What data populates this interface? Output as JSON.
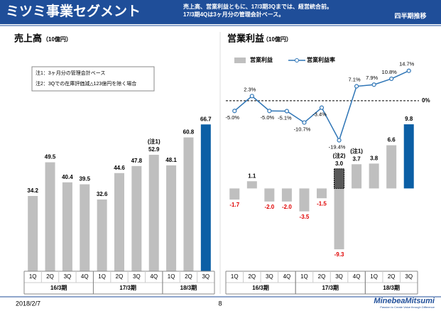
{
  "header": {
    "title": "ミツミ事業セグメント",
    "notes": [
      "売上高、営業利益ともに、17/3期3Qまでは、経営統合前。",
      "17/3期4Qは3ヶ月分の管理会計ベース。"
    ],
    "badge": "四半期推移"
  },
  "footer": {
    "date": "2018/2/7",
    "page": "8",
    "logo": "MinebeaMitsumi",
    "tagline": "Passion to Create Value through Difference"
  },
  "chart_data": [
    {
      "type": "bar",
      "title": "売上高",
      "unit": "（10億円）",
      "notes": [
        "注1：3ヶ月分の管理会計ベース",
        "注2：3Qでの在庫評価減△123億円を除く場合"
      ],
      "categories": [
        "1Q",
        "2Q",
        "3Q",
        "4Q",
        "1Q",
        "2Q",
        "3Q",
        "4Q",
        "1Q",
        "2Q",
        "3Q"
      ],
      "groups": [
        "16/3期",
        "17/3期",
        "18/3期"
      ],
      "values": [
        34.2,
        49.5,
        40.4,
        39.5,
        32.6,
        44.6,
        47.8,
        52.9,
        48.1,
        60.8,
        66.7
      ],
      "colors": [
        "#bfbfbf",
        "#bfbfbf",
        "#bfbfbf",
        "#bfbfbf",
        "#bfbfbf",
        "#bfbfbf",
        "#bfbfbf",
        "#bfbfbf",
        "#bfbfbf",
        "#bfbfbf",
        "#0b5fa5"
      ],
      "annotations": [
        null,
        null,
        null,
        null,
        null,
        null,
        null,
        "(注1)",
        null,
        null,
        null
      ],
      "ylim": [
        0,
        70
      ]
    },
    {
      "type": "bar-line",
      "title": "営業利益",
      "unit": "（10億円）",
      "categories": [
        "1Q",
        "2Q",
        "3Q",
        "4Q",
        "1Q",
        "2Q",
        "3Q",
        "4Q",
        "1Q",
        "2Q",
        "3Q"
      ],
      "groups": [
        "16/3期",
        "17/3期",
        "18/3期"
      ],
      "ylim": [
        -12,
        11
      ],
      "y2lim": [
        -22,
        16
      ],
      "y2ticks": [
        {
          "value": 0,
          "label": "0%"
        }
      ],
      "series": [
        {
          "name": "営業利益",
          "kind": "bar",
          "values": [
            -1.7,
            1.1,
            -2.0,
            -2.0,
            -3.5,
            -1.5,
            -9.3,
            3.7,
            3.8,
            6.6,
            9.8
          ],
          "value_labels": [
            "-1.7",
            "1.1",
            "-2.0",
            "-2.0",
            "-3.5",
            "-1.5",
            "-9.3",
            "3.7",
            "3.8",
            "6.6",
            "9.8"
          ],
          "colors": [
            "#bfbfbf",
            "#bfbfbf",
            "#bfbfbf",
            "#bfbfbf",
            "#bfbfbf",
            "#bfbfbf",
            "#bfbfbf",
            "#bfbfbf",
            "#bfbfbf",
            "#bfbfbf",
            "#0b5fa5"
          ],
          "annotations": [
            null,
            null,
            null,
            null,
            null,
            null,
            null,
            "(注1)",
            null,
            null,
            null
          ]
        },
        {
          "kind": "bar",
          "color": "#595959",
          "values": [
            null,
            null,
            null,
            null,
            null,
            null,
            3.0,
            null,
            null,
            null,
            null
          ],
          "value_labels": [
            null,
            null,
            null,
            null,
            null,
            null,
            "3.0",
            null,
            null,
            null,
            null
          ],
          "annotations": [
            null,
            null,
            null,
            null,
            null,
            null,
            "(注2)",
            null,
            null,
            null,
            null
          ]
        },
        {
          "name": "営業利益率",
          "kind": "line",
          "axis": "y2",
          "color": "#2e75b6",
          "values": [
            -5.0,
            2.3,
            -5.0,
            -5.1,
            -10.7,
            -3.4,
            -19.4,
            7.1,
            7.9,
            10.8,
            14.7
          ],
          "value_labels": [
            "-5.0%",
            "2.3%",
            "-5.0%",
            "-5.1%",
            "-10.7%",
            "-3.4%",
            "-19.4%",
            "7.1%",
            "7.9%",
            "10.8%",
            "14.7%"
          ]
        }
      ]
    }
  ]
}
